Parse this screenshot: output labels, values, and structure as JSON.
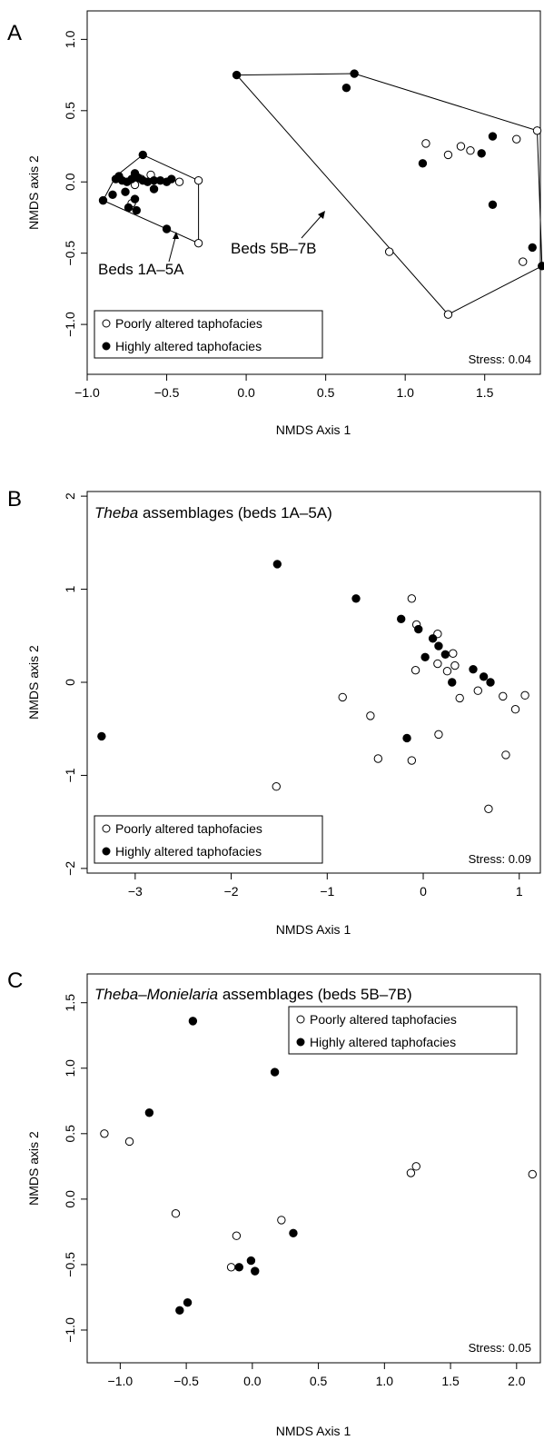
{
  "chart_data": [
    {
      "type": "scatter",
      "panel_label": "A",
      "title": "",
      "xlabel": "NMDS Axis 1",
      "ylabel": "NMDS axis 2",
      "xlim": [
        -1.0,
        1.85
      ],
      "ylim": [
        -1.35,
        1.2
      ],
      "x_ticks": [
        -1.0,
        -0.5,
        0.0,
        0.5,
        1.0,
        1.5
      ],
      "x_tick_labels": [
        "−1.0",
        "−0.5",
        "0.0",
        "0.5",
        "1.0",
        "1.5"
      ],
      "y_ticks": [
        -1.0,
        -0.5,
        0.0,
        0.5,
        1.0
      ],
      "y_tick_labels": [
        "−1.0",
        "−0.5",
        "0.0",
        "0.5",
        "1.0"
      ],
      "grid": false,
      "legend_position": "bottom-left",
      "stress": "Stress: 0.04",
      "series": [
        {
          "name": "Poorly altered taphofacies",
          "marker": "open",
          "points": [
            [
              -0.3,
              0.01
            ],
            [
              -0.3,
              -0.43
            ],
            [
              -0.7,
              -0.02
            ],
            [
              -0.72,
              -0.15
            ],
            [
              -0.6,
              0.05
            ],
            [
              -0.66,
              0.02
            ],
            [
              -0.42,
              0.0
            ],
            [
              0.9,
              -0.49
            ],
            [
              1.27,
              -0.93
            ],
            [
              1.13,
              0.27
            ],
            [
              1.27,
              0.19
            ],
            [
              1.35,
              0.25
            ],
            [
              1.41,
              0.22
            ],
            [
              1.7,
              0.3
            ],
            [
              1.83,
              0.36
            ],
            [
              1.74,
              -0.56
            ]
          ]
        },
        {
          "name": "Highly altered taphofacies",
          "marker": "filled",
          "points": [
            [
              -0.9,
              -0.13
            ],
            [
              -0.84,
              -0.09
            ],
            [
              -0.82,
              0.02
            ],
            [
              -0.8,
              0.04
            ],
            [
              -0.78,
              0.01
            ],
            [
              -0.75,
              0.0
            ],
            [
              -0.72,
              0.02
            ],
            [
              -0.7,
              0.06
            ],
            [
              -0.68,
              0.03
            ],
            [
              -0.65,
              0.01
            ],
            [
              -0.62,
              0.0
            ],
            [
              -0.58,
              0.01
            ],
            [
              -0.54,
              0.01
            ],
            [
              -0.5,
              0.0
            ],
            [
              -0.47,
              0.02
            ],
            [
              -0.65,
              0.19
            ],
            [
              -0.76,
              -0.07
            ],
            [
              -0.7,
              -0.12
            ],
            [
              -0.74,
              -0.18
            ],
            [
              -0.69,
              -0.2
            ],
            [
              -0.5,
              -0.33
            ],
            [
              -0.58,
              -0.05
            ],
            [
              -0.06,
              0.75
            ],
            [
              0.68,
              0.76
            ],
            [
              0.63,
              0.66
            ],
            [
              1.11,
              0.13
            ],
            [
              1.48,
              0.2
            ],
            [
              1.55,
              0.32
            ],
            [
              1.55,
              -0.16
            ],
            [
              1.8,
              -0.46
            ],
            [
              1.86,
              -0.59
            ]
          ]
        }
      ],
      "hulls": [
        {
          "label": "Beds 1A–5A",
          "points": [
            [
              -0.9,
              -0.13
            ],
            [
              -0.82,
              0.04
            ],
            [
              -0.65,
              0.19
            ],
            [
              -0.3,
              0.01
            ],
            [
              -0.3,
              -0.43
            ]
          ]
        },
        {
          "label": "Beds 5B–7B",
          "points": [
            [
              -0.06,
              0.75
            ],
            [
              0.68,
              0.76
            ],
            [
              1.83,
              0.36
            ],
            [
              1.86,
              -0.59
            ],
            [
              1.27,
              -0.93
            ]
          ]
        }
      ]
    },
    {
      "type": "scatter",
      "panel_label": "B",
      "title": "assemblages (beds 1A–5A)",
      "title_italic": "Theba",
      "xlabel": "NMDS Axis 1",
      "ylabel": "NMDS axis 2",
      "xlim": [
        -3.5,
        1.22
      ],
      "ylim": [
        -2.05,
        2.05
      ],
      "x_ticks": [
        -3,
        -2,
        -1,
        0,
        1
      ],
      "x_tick_labels": [
        "−3",
        "−2",
        "−1",
        "0",
        "1"
      ],
      "y_ticks": [
        -2,
        -1,
        0,
        1,
        2
      ],
      "y_tick_labels": [
        "−2",
        "−1",
        "0",
        "1",
        "2"
      ],
      "grid": false,
      "legend_position": "bottom-left",
      "stress": "Stress: 0.09",
      "series": [
        {
          "name": "Poorly altered taphofacies",
          "marker": "open",
          "points": [
            [
              -1.53,
              -1.12
            ],
            [
              -0.84,
              -0.16
            ],
            [
              -0.55,
              -0.36
            ],
            [
              -0.47,
              -0.82
            ],
            [
              -0.12,
              0.9
            ],
            [
              -0.12,
              -0.84
            ],
            [
              -0.07,
              0.62
            ],
            [
              -0.08,
              0.13
            ],
            [
              0.15,
              0.52
            ],
            [
              0.15,
              0.2
            ],
            [
              0.25,
              0.12
            ],
            [
              0.31,
              0.31
            ],
            [
              0.33,
              0.18
            ],
            [
              0.38,
              -0.17
            ],
            [
              0.16,
              -0.56
            ],
            [
              0.57,
              -0.09
            ],
            [
              0.83,
              -0.15
            ],
            [
              0.86,
              -0.78
            ],
            [
              0.96,
              -0.29
            ],
            [
              1.06,
              -0.14
            ],
            [
              0.68,
              -1.36
            ]
          ]
        },
        {
          "name": "Highly altered taphofacies",
          "marker": "filled",
          "points": [
            [
              -3.35,
              -0.58
            ],
            [
              -1.52,
              1.27
            ],
            [
              -0.7,
              0.9
            ],
            [
              -0.23,
              0.68
            ],
            [
              -0.05,
              0.57
            ],
            [
              0.1,
              0.47
            ],
            [
              0.16,
              0.39
            ],
            [
              0.23,
              0.3
            ],
            [
              0.02,
              0.27
            ],
            [
              0.3,
              0.0
            ],
            [
              0.52,
              0.14
            ],
            [
              0.63,
              0.06
            ],
            [
              0.7,
              0.0
            ],
            [
              -0.17,
              -0.6
            ]
          ]
        }
      ]
    },
    {
      "type": "scatter",
      "panel_label": "C",
      "title": "assemblages (beds 5B–7B)",
      "title_italic": "Theba–Monielaria",
      "xlabel": "NMDS Axis 1",
      "ylabel": "NMDS axis 2",
      "xlim": [
        -1.25,
        2.18
      ],
      "ylim": [
        -1.25,
        1.72
      ],
      "x_ticks": [
        -1.0,
        -0.5,
        0.0,
        0.5,
        1.0,
        1.5,
        2.0
      ],
      "x_tick_labels": [
        "−1.0",
        "−0.5",
        "0.0",
        "0.5",
        "1.0",
        "1.5",
        "2.0"
      ],
      "y_ticks": [
        -1.0,
        -0.5,
        0.0,
        0.5,
        1.0,
        1.5
      ],
      "y_tick_labels": [
        "−1.0",
        "−0.5",
        "0.0",
        "0.5",
        "1.0",
        "1.5"
      ],
      "grid": false,
      "legend_position": "top-right",
      "stress": "Stress: 0.05",
      "series": [
        {
          "name": "Poorly altered taphofacies",
          "marker": "open",
          "points": [
            [
              -1.12,
              0.5
            ],
            [
              -0.93,
              0.44
            ],
            [
              -0.58,
              -0.11
            ],
            [
              -0.12,
              -0.28
            ],
            [
              -0.16,
              -0.52
            ],
            [
              0.22,
              -0.16
            ],
            [
              1.2,
              0.2
            ],
            [
              1.24,
              0.25
            ],
            [
              2.12,
              0.19
            ]
          ]
        },
        {
          "name": "Highly altered taphofacies",
          "marker": "filled",
          "points": [
            [
              -0.45,
              1.36
            ],
            [
              -0.78,
              0.66
            ],
            [
              0.17,
              0.97
            ],
            [
              -0.1,
              -0.52
            ],
            [
              -0.01,
              -0.47
            ],
            [
              0.02,
              -0.55
            ],
            [
              0.31,
              -0.26
            ],
            [
              -0.49,
              -0.79
            ],
            [
              -0.55,
              -0.85
            ]
          ]
        }
      ]
    }
  ]
}
